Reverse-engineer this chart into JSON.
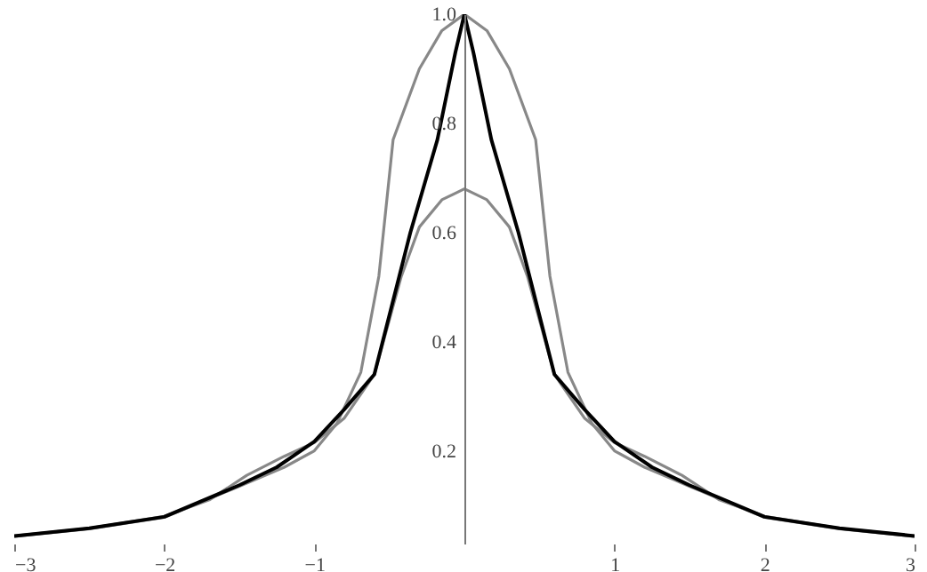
{
  "chart_data": {
    "type": "line",
    "xlim": [
      -3,
      3
    ],
    "ylim": [
      0.03,
      1.0
    ],
    "xticks": [
      {
        "value": -3,
        "label": "−3"
      },
      {
        "value": -2,
        "label": "−2"
      },
      {
        "value": -1,
        "label": "−1"
      },
      1,
      2,
      3
    ],
    "yticks": [
      0.2,
      0.4,
      0.6,
      0.8,
      {
        "value": 1,
        "label": "1.0"
      }
    ],
    "grid": false,
    "marker": "none",
    "line_style": "solid",
    "series": [
      {
        "color": "#888888",
        "x": [
          -3,
          -2.5,
          -2,
          -1.5,
          -1.2,
          -1,
          -0.85,
          -0.69,
          -0.57,
          -0.475,
          -0.3,
          -0.15,
          0,
          0.15,
          0.3,
          0.475,
          0.57,
          0.69,
          0.85,
          1,
          1.2,
          1.5,
          2,
          2.5,
          3
        ],
        "values": [
          0.043,
          0.057,
          0.078,
          0.135,
          0.17,
          0.2,
          0.25,
          0.344,
          0.52,
          0.77,
          0.9,
          0.97,
          1,
          0.97,
          0.9,
          0.77,
          0.52,
          0.344,
          0.25,
          0.2,
          0.17,
          0.135,
          0.078,
          0.057,
          0.043
        ]
      },
      {
        "color": "#888888",
        "x": [
          -3,
          -2.5,
          -2,
          -1.7,
          -1.45,
          -1.2,
          -1,
          -0.8,
          -0.6,
          -0.42,
          -0.3,
          -0.15,
          0,
          0.15,
          0.3,
          0.42,
          0.6,
          0.8,
          1,
          1.2,
          1.45,
          1.7,
          2,
          2.5,
          3
        ],
        "values": [
          0.044,
          0.058,
          0.08,
          0.11,
          0.155,
          0.19,
          0.215,
          0.26,
          0.34,
          0.52,
          0.61,
          0.66,
          0.68,
          0.66,
          0.61,
          0.52,
          0.34,
          0.26,
          0.215,
          0.19,
          0.155,
          0.11,
          0.08,
          0.058,
          0.044
        ]
      },
      {
        "color": "#000000",
        "x": [
          -3,
          -2.5,
          -2,
          -1.5,
          -1.25,
          -1,
          -0.8,
          -0.6,
          -0.36,
          -0.18,
          -0.06,
          0,
          0.06,
          0.18,
          0.36,
          0.6,
          0.8,
          1,
          1.25,
          1.5,
          2,
          2.5,
          3
        ],
        "values": [
          0.044,
          0.058,
          0.079,
          0.137,
          0.17,
          0.217,
          0.276,
          0.34,
          0.6,
          0.77,
          0.93,
          1,
          0.93,
          0.77,
          0.6,
          0.34,
          0.276,
          0.217,
          0.17,
          0.137,
          0.079,
          0.058,
          0.044
        ]
      }
    ]
  }
}
